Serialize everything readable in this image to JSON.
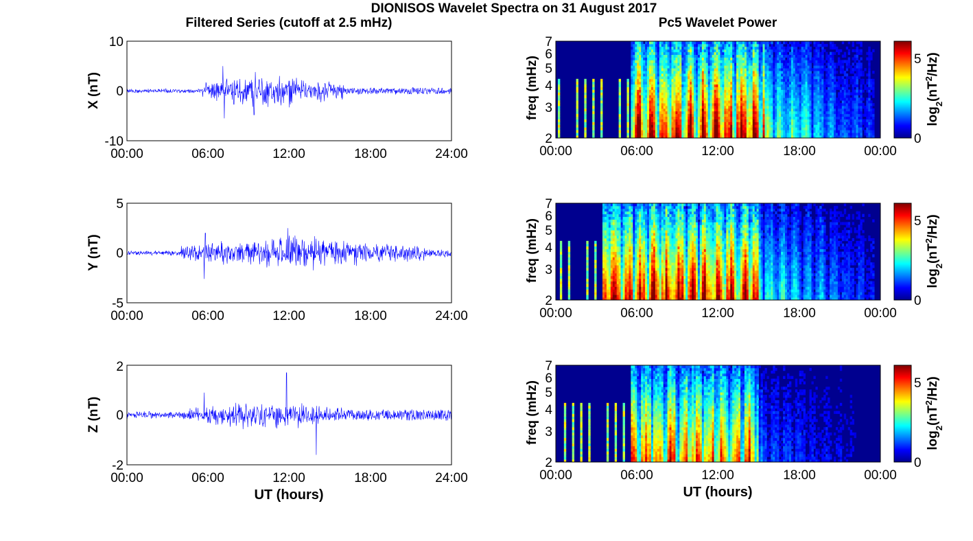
{
  "figure": {
    "title": "DIONISOS Wavelet Spectra on 31 August 2017",
    "left_column_title": "Filtered Series (cutoff at 2.5 mHz)",
    "right_column_title": "Pc5 Wavelet Power",
    "x_axis_label": "UT (hours)"
  },
  "colors": {
    "trace": "#0000ff",
    "colormap_low": "#00008f",
    "colormap_high": "#800000",
    "axes": "#000000"
  },
  "chart_data": [
    {
      "type": "line",
      "component": "X",
      "ylabel": "X (nT)",
      "xlim": [
        0,
        24
      ],
      "ylim": [
        -10,
        10
      ],
      "x_ticks": [
        "00:00",
        "06:00",
        "12:00",
        "18:00",
        "24:00"
      ],
      "y_ticks": [
        "-10",
        "0",
        "10"
      ],
      "activity": {
        "background_amplitude": 0.35,
        "onset_hour": 5.6,
        "end_hour": 16.0,
        "peak_amplitude": 3.5,
        "max_value": 5,
        "min_value": -5.5,
        "spikes": [
          {
            "x": 7.1,
            "y": 5
          },
          {
            "x": 7.2,
            "y": -5.5
          },
          {
            "x": 9.5,
            "y": 3.8
          },
          {
            "x": 9.4,
            "y": -4.8
          }
        ]
      }
    },
    {
      "type": "line",
      "component": "Y",
      "ylabel": "Y (nT)",
      "xlim": [
        0,
        24
      ],
      "ylim": [
        -5,
        5
      ],
      "x_ticks": [
        "00:00",
        "06:00",
        "12:00",
        "18:00",
        "24:00"
      ],
      "y_ticks": [
        "-5",
        "0",
        "5"
      ],
      "activity": {
        "background_amplitude": 0.2,
        "onset_hour": 4.0,
        "end_hour": 22.0,
        "peak_amplitude": 1.6,
        "max_value": 2.5,
        "min_value": -2.6,
        "spikes": [
          {
            "x": 5.8,
            "y": 2
          },
          {
            "x": 5.7,
            "y": -2.6
          },
          {
            "x": 11.9,
            "y": 2.5
          }
        ]
      }
    },
    {
      "type": "line",
      "component": "Z",
      "ylabel": "Z (nT)",
      "xlim": [
        0,
        24
      ],
      "ylim": [
        -2,
        2
      ],
      "x_ticks": [
        "00:00",
        "06:00",
        "12:00",
        "18:00",
        "24:00"
      ],
      "y_ticks": [
        "-2",
        "0",
        "2"
      ],
      "activity": {
        "background_amplitude": 0.12,
        "onset_hour": 4.5,
        "end_hour": 16.0,
        "peak_amplitude": 0.6,
        "max_value": 1.7,
        "min_value": -1.6,
        "spikes": [
          {
            "x": 11.8,
            "y": 1.7
          },
          {
            "x": 14.0,
            "y": -1.6
          },
          {
            "x": 5.7,
            "y": 0.9
          }
        ]
      }
    },
    {
      "type": "heatmap",
      "component": "X",
      "ylabel": "freq (mHz)",
      "yscale": "log",
      "xlim": [
        0,
        24
      ],
      "ylim": [
        2,
        7
      ],
      "x_ticks": [
        "00:00",
        "06:00",
        "12:00",
        "18:00",
        "00:00"
      ],
      "y_ticks": [
        "2",
        "3",
        "4",
        "5",
        "6",
        "7"
      ],
      "colorbar_label": "log2(nT2/Hz)",
      "colorbar_range": [
        0,
        6
      ],
      "colorbar_ticks": [
        "0",
        "5"
      ],
      "power_profile": {
        "quiet_before": 5.5,
        "active_from": 5.5,
        "active_to": 15.5,
        "peak_level": 6,
        "tail_level": 3.5,
        "quiet_after": 23.5
      }
    },
    {
      "type": "heatmap",
      "component": "Y",
      "ylabel": "freq (mHz)",
      "yscale": "log",
      "xlim": [
        0,
        24
      ],
      "ylim": [
        2,
        7
      ],
      "x_ticks": [
        "00:00",
        "06:00",
        "12:00",
        "18:00",
        "00:00"
      ],
      "y_ticks": [
        "2",
        "3",
        "4",
        "5",
        "6",
        "7"
      ],
      "colorbar_label": "log2(nT2/Hz)",
      "colorbar_range": [
        0,
        6
      ],
      "colorbar_ticks": [
        "0",
        "5"
      ],
      "power_profile": {
        "quiet_before": 3.5,
        "active_from": 5.5,
        "active_to": 15.0,
        "peak_level": 5.8,
        "tail_level": 3.0,
        "quiet_after": 23.5
      }
    },
    {
      "type": "heatmap",
      "component": "Z",
      "ylabel": "freq (mHz)",
      "yscale": "log",
      "xlim": [
        0,
        24
      ],
      "ylim": [
        2,
        7
      ],
      "x_ticks": [
        "00:00",
        "06:00",
        "12:00",
        "18:00",
        "00:00"
      ],
      "y_ticks": [
        "2",
        "3",
        "4",
        "5",
        "6",
        "7"
      ],
      "colorbar_label": "log2(nT2/Hz)",
      "colorbar_range": [
        0,
        6
      ],
      "colorbar_ticks": [
        "0",
        "5"
      ],
      "power_profile": {
        "quiet_before": 5.5,
        "active_from": 5.5,
        "active_to": 15.0,
        "peak_level": 5.2,
        "tail_level": 1.5,
        "quiet_after": 22.5
      }
    }
  ]
}
